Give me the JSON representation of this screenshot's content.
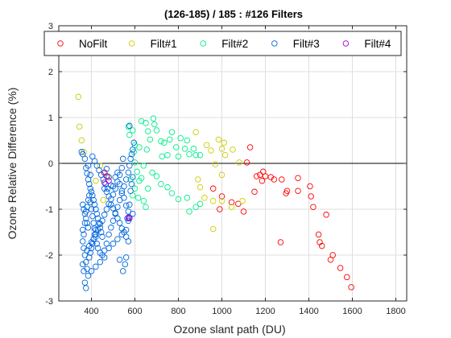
{
  "chart_data": {
    "type": "scatter",
    "title": "(126-185) / 185 : #126 Filters",
    "xlabel": "Ozone slant path (DU)",
    "ylabel": "Ozone Relative Difference (%)",
    "xlim": [
      250,
      1850
    ],
    "ylim": [
      -3,
      3
    ],
    "xticks": [
      400,
      600,
      800,
      1000,
      1200,
      1400,
      1600,
      1800
    ],
    "yticks": [
      -3,
      -2,
      -1,
      0,
      1,
      2,
      3
    ],
    "grid": true,
    "zero_line": true,
    "legend_position": "top",
    "series": [
      {
        "name": "NoFilt",
        "color": "#ff0000",
        "points": [
          [
            1130,
            0.35
          ],
          [
            1115,
            0.02
          ],
          [
            1160,
            -0.28
          ],
          [
            1175,
            -0.25
          ],
          [
            1190,
            -0.18
          ],
          [
            1185,
            -0.38
          ],
          [
            1200,
            -0.28
          ],
          [
            1225,
            -0.3
          ],
          [
            1240,
            -0.35
          ],
          [
            1275,
            -0.35
          ],
          [
            1300,
            -0.6
          ],
          [
            1295,
            -0.65
          ],
          [
            1350,
            -0.32
          ],
          [
            1350,
            -0.6
          ],
          [
            1405,
            -0.5
          ],
          [
            1410,
            -0.72
          ],
          [
            1420,
            -0.95
          ],
          [
            1480,
            -1.12
          ],
          [
            1445,
            -1.55
          ],
          [
            1450,
            -1.72
          ],
          [
            1460,
            -1.8
          ],
          [
            1500,
            -2.1
          ],
          [
            1510,
            -2.0
          ],
          [
            1545,
            -2.28
          ],
          [
            1575,
            -2.48
          ],
          [
            1595,
            -2.7
          ],
          [
            1270,
            -1.72
          ],
          [
            1150,
            -0.62
          ],
          [
            1100,
            -1.05
          ],
          [
            1075,
            -0.88
          ],
          [
            1045,
            -0.85
          ],
          [
            1000,
            -0.72
          ],
          [
            960,
            -0.55
          ],
          [
            990,
            -1.0
          ]
        ]
      },
      {
        "name": "Filt#1",
        "color": "#cccc00",
        "points": [
          [
            340,
            1.45
          ],
          [
            345,
            0.8
          ],
          [
            355,
            0.5
          ],
          [
            365,
            0.25
          ],
          [
            440,
            -0.05
          ],
          [
            460,
            -0.22
          ],
          [
            475,
            -0.28
          ],
          [
            420,
            -0.38
          ],
          [
            455,
            -0.8
          ],
          [
            880,
            0.68
          ],
          [
            985,
            0.52
          ],
          [
            1000,
            0.32
          ],
          [
            1010,
            0.45
          ],
          [
            1015,
            0.18
          ],
          [
            1050,
            0.3
          ],
          [
            1080,
            0.02
          ],
          [
            930,
            0.4
          ],
          [
            950,
            0.28
          ],
          [
            970,
            -0.02
          ],
          [
            1000,
            -0.25
          ],
          [
            890,
            -0.35
          ],
          [
            900,
            -0.52
          ],
          [
            920,
            -0.75
          ],
          [
            960,
            -0.82
          ],
          [
            960,
            -1.43
          ],
          [
            1000,
            -0.82
          ],
          [
            1045,
            -0.95
          ],
          [
            1095,
            -0.82
          ]
        ]
      },
      {
        "name": "Filt#2",
        "color": "#00ee88",
        "points": [
          [
            570,
            0.8
          ],
          [
            575,
            0.62
          ],
          [
            590,
            0.72
          ],
          [
            595,
            0.25
          ],
          [
            600,
            0.4
          ],
          [
            620,
            0.35
          ],
          [
            630,
            0.92
          ],
          [
            650,
            0.88
          ],
          [
            655,
            0.3
          ],
          [
            660,
            0.7
          ],
          [
            670,
            0.52
          ],
          [
            685,
            0.98
          ],
          [
            690,
            0.85
          ],
          [
            700,
            0.72
          ],
          [
            720,
            0.48
          ],
          [
            725,
            0.15
          ],
          [
            735,
            0.45
          ],
          [
            750,
            0.18
          ],
          [
            760,
            0.52
          ],
          [
            770,
            0.68
          ],
          [
            790,
            0.35
          ],
          [
            800,
            0.15
          ],
          [
            810,
            0.55
          ],
          [
            830,
            0.32
          ],
          [
            840,
            0.5
          ],
          [
            850,
            0.2
          ],
          [
            870,
            0.32
          ],
          [
            880,
            0.18
          ],
          [
            900,
            0.18
          ],
          [
            600,
            0.02
          ],
          [
            610,
            -0.18
          ],
          [
            620,
            -0.38
          ],
          [
            630,
            -0.32
          ],
          [
            640,
            -0.05
          ],
          [
            660,
            -0.55
          ],
          [
            680,
            -0.2
          ],
          [
            700,
            -0.28
          ],
          [
            720,
            -0.45
          ],
          [
            750,
            -0.52
          ],
          [
            770,
            -0.65
          ],
          [
            800,
            -0.78
          ],
          [
            840,
            -0.75
          ],
          [
            850,
            -1.05
          ],
          [
            880,
            -0.95
          ],
          [
            900,
            -0.88
          ],
          [
            580,
            -0.35
          ],
          [
            590,
            -0.7
          ],
          [
            640,
            -0.82
          ],
          [
            650,
            -0.95
          ],
          [
            600,
            -0.55
          ],
          [
            615,
            -0.75
          ]
        ]
      },
      {
        "name": "Filt#3",
        "color": "#0066dd",
        "points": [
          [
            355,
            0.25
          ],
          [
            360,
            0.2
          ],
          [
            370,
            0.1
          ],
          [
            375,
            -0.1
          ],
          [
            380,
            -0.22
          ],
          [
            385,
            -0.35
          ],
          [
            390,
            -0.45
          ],
          [
            395,
            -0.55
          ],
          [
            400,
            -0.62
          ],
          [
            405,
            -0.7
          ],
          [
            410,
            -0.8
          ],
          [
            415,
            -0.9
          ],
          [
            420,
            -1.0
          ],
          [
            425,
            -1.1
          ],
          [
            430,
            -1.2
          ],
          [
            435,
            -1.3
          ],
          [
            440,
            -1.4
          ],
          [
            445,
            -1.5
          ],
          [
            450,
            -1.6
          ],
          [
            360,
            -1.7
          ],
          [
            365,
            -1.85
          ],
          [
            370,
            -2.0
          ],
          [
            375,
            -2.15
          ],
          [
            380,
            -2.3
          ],
          [
            385,
            -2.45
          ],
          [
            370,
            -2.6
          ],
          [
            375,
            -2.72
          ],
          [
            390,
            -2.05
          ],
          [
            395,
            -1.95
          ],
          [
            400,
            -1.85
          ],
          [
            405,
            -1.75
          ],
          [
            410,
            -1.65
          ],
          [
            415,
            -1.55
          ],
          [
            420,
            -1.45
          ],
          [
            360,
            -0.9
          ],
          [
            365,
            -1.0
          ],
          [
            370,
            -1.1
          ],
          [
            375,
            -1.2
          ],
          [
            380,
            -1.3
          ],
          [
            385,
            -1.4
          ],
          [
            360,
            -1.45
          ],
          [
            365,
            -1.55
          ],
          [
            370,
            -1.3
          ],
          [
            375,
            -1.05
          ],
          [
            380,
            -0.95
          ],
          [
            385,
            -0.8
          ],
          [
            390,
            -0.7
          ],
          [
            395,
            -0.85
          ],
          [
            400,
            -1.0
          ],
          [
            405,
            -1.15
          ],
          [
            410,
            -1.3
          ],
          [
            415,
            -1.42
          ],
          [
            420,
            -1.6
          ],
          [
            425,
            -1.75
          ],
          [
            430,
            -1.85
          ],
          [
            440,
            -1.95
          ],
          [
            450,
            -2.0
          ],
          [
            460,
            -1.9
          ],
          [
            470,
            -1.75
          ],
          [
            480,
            -1.55
          ],
          [
            490,
            -1.4
          ],
          [
            500,
            -1.25
          ],
          [
            510,
            -1.1
          ],
          [
            520,
            -0.95
          ],
          [
            530,
            -0.8
          ],
          [
            540,
            -0.65
          ],
          [
            550,
            -0.5
          ],
          [
            560,
            -0.35
          ],
          [
            570,
            -0.2
          ],
          [
            575,
            -0.05
          ],
          [
            580,
            0.1
          ],
          [
            585,
            0.2
          ],
          [
            590,
            0.3
          ],
          [
            595,
            0.45
          ],
          [
            575,
            0.82
          ],
          [
            545,
            0.1
          ],
          [
            540,
            -0.1
          ],
          [
            530,
            -0.25
          ],
          [
            520,
            -0.4
          ],
          [
            510,
            -0.55
          ],
          [
            500,
            -0.68
          ],
          [
            490,
            -0.78
          ],
          [
            480,
            -0.88
          ],
          [
            470,
            -1.0
          ],
          [
            460,
            -1.12
          ],
          [
            450,
            -1.25
          ],
          [
            440,
            -1.32
          ],
          [
            430,
            -1.45
          ],
          [
            420,
            -1.55
          ],
          [
            410,
            -1.65
          ],
          [
            400,
            -1.72
          ],
          [
            390,
            -1.8
          ],
          [
            380,
            -1.9
          ],
          [
            470,
            -0.12
          ],
          [
            480,
            -0.3
          ],
          [
            490,
            -0.48
          ],
          [
            500,
            -0.5
          ],
          [
            510,
            -0.3
          ],
          [
            520,
            -0.2
          ],
          [
            530,
            -0.45
          ],
          [
            540,
            -0.6
          ],
          [
            550,
            -0.75
          ],
          [
            560,
            -0.92
          ],
          [
            570,
            -1.05
          ],
          [
            575,
            -1.18
          ],
          [
            560,
            -1.45
          ],
          [
            540,
            -1.55
          ],
          [
            520,
            -1.65
          ],
          [
            500,
            -1.75
          ],
          [
            480,
            -1.85
          ],
          [
            460,
            -2.05
          ],
          [
            440,
            -2.15
          ],
          [
            420,
            -2.25
          ],
          [
            400,
            -2.35
          ],
          [
            360,
            -2.2
          ],
          [
            365,
            -2.35
          ],
          [
            460,
            -0.55
          ],
          [
            470,
            -0.62
          ],
          [
            480,
            -0.72
          ],
          [
            490,
            -0.9
          ],
          [
            500,
            -0.98
          ],
          [
            510,
            -1.08
          ],
          [
            520,
            -1.2
          ],
          [
            530,
            -1.3
          ],
          [
            540,
            -1.42
          ],
          [
            550,
            -1.5
          ],
          [
            560,
            -1.6
          ],
          [
            570,
            -1.7
          ],
          [
            560,
            -2.05
          ],
          [
            555,
            -2.2
          ],
          [
            545,
            -2.35
          ],
          [
            530,
            -2.1
          ],
          [
            405,
            0.15
          ],
          [
            415,
            0.05
          ],
          [
            425,
            -0.05
          ],
          [
            435,
            -0.15
          ],
          [
            445,
            -0.25
          ],
          [
            455,
            -0.35
          ],
          [
            465,
            -0.45
          ],
          [
            475,
            -0.55
          ],
          [
            395,
            -0.25
          ],
          [
            385,
            -0.05
          ],
          [
            565,
            -1.2
          ],
          [
            570,
            -1.25
          ],
          [
            575,
            -0.9
          ],
          [
            580,
            -0.6
          ],
          [
            585,
            -0.45
          ],
          [
            590,
            -0.3
          ],
          [
            590,
            -1.1
          ]
        ]
      },
      {
        "name": "Filt#4",
        "color": "#aa00cc",
        "points": [
          [
            460,
            -0.2
          ],
          [
            470,
            -0.28
          ],
          [
            480,
            -0.38
          ],
          [
            570,
            -1.18
          ],
          [
            575,
            -1.2
          ],
          [
            460,
            -0.42
          ]
        ]
      }
    ]
  }
}
